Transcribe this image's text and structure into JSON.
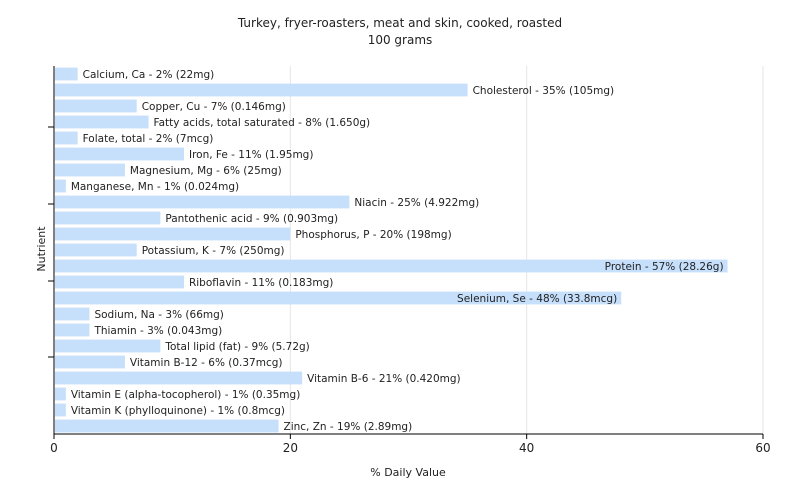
{
  "chart_data": {
    "type": "bar",
    "orientation": "horizontal",
    "title": "Turkey, fryer-roasters, meat and skin, cooked, roasted",
    "subtitle": "100 grams",
    "xlabel": "% Daily Value",
    "ylabel": "Nutrient",
    "xlim": [
      0,
      60
    ],
    "xticks": [
      "0",
      "20",
      "40",
      "60"
    ],
    "grid": true,
    "bar_color": "#c6dffb",
    "categories": [
      "Calcium, Ca",
      "Cholesterol",
      "Copper, Cu",
      "Fatty acids, total saturated",
      "Folate, total",
      "Iron, Fe",
      "Magnesium, Mg",
      "Manganese, Mn",
      "Niacin",
      "Pantothenic acid",
      "Phosphorus, P",
      "Potassium, K",
      "Protein",
      "Riboflavin",
      "Selenium, Se",
      "Sodium, Na",
      "Thiamin",
      "Total lipid (fat)",
      "Vitamin B-12",
      "Vitamin B-6",
      "Vitamin E (alpha-tocopherol)",
      "Vitamin K (phylloquinone)",
      "Zinc, Zn"
    ],
    "values": [
      2,
      35,
      7,
      8,
      2,
      11,
      6,
      1,
      25,
      9,
      20,
      7,
      57,
      11,
      48,
      3,
      3,
      9,
      6,
      21,
      1,
      1,
      19
    ],
    "labels": [
      "Calcium, Ca - 2% (22mg)",
      "Cholesterol - 35% (105mg)",
      "Copper, Cu - 7% (0.146mg)",
      "Fatty acids, total saturated - 8% (1.650g)",
      "Folate, total - 2% (7mcg)",
      "Iron, Fe - 11% (1.95mg)",
      "Magnesium, Mg - 6% (25mg)",
      "Manganese, Mn - 1% (0.024mg)",
      "Niacin - 25% (4.922mg)",
      "Pantothenic acid - 9% (0.903mg)",
      "Phosphorus, P - 20% (198mg)",
      "Potassium, K - 7% (250mg)",
      "Protein - 57% (28.26g)",
      "Riboflavin - 11% (0.183mg)",
      "Selenium, Se - 48% (33.8mcg)",
      "Sodium, Na - 3% (66mg)",
      "Thiamin - 3% (0.043mg)",
      "Total lipid (fat) - 9% (5.72g)",
      "Vitamin B-12 - 6% (0.37mcg)",
      "Vitamin B-6 - 21% (0.420mg)",
      "Vitamin E (alpha-tocopherol) - 1% (0.35mg)",
      "Vitamin K (phylloquinone) - 1% (0.8mcg)",
      "Zinc, Zn - 19% (2.89mg)"
    ]
  }
}
